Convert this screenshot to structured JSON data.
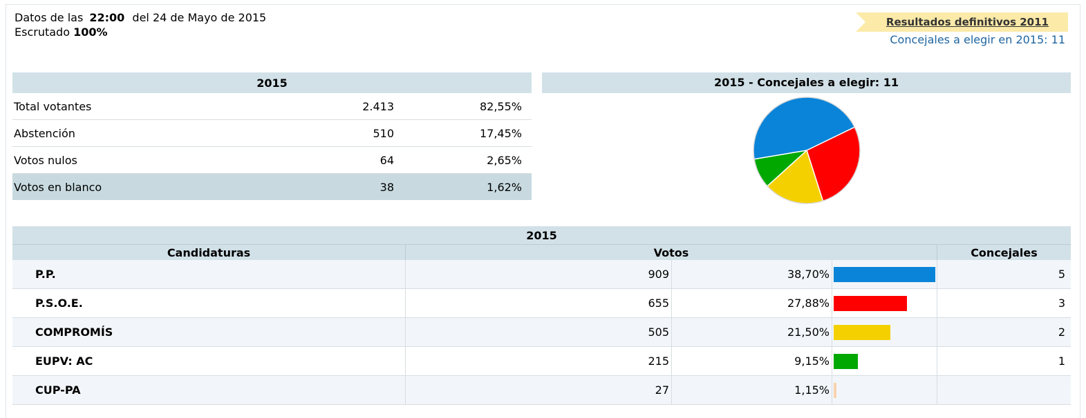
{
  "header": {
    "prefix": "Datos de las",
    "time": "22:00",
    "date": "del 24 de Mayo de 2015",
    "scrutiny_label": "Escrutado",
    "scrutiny_value": "100%",
    "link_2011": "Resultados definitivos 2011",
    "concejales_note": "Concejales a elegir en 2015: 11"
  },
  "summary": {
    "title": "2015",
    "rows": [
      {
        "label": "Total votantes",
        "value": "2.413",
        "pct": "82,55%"
      },
      {
        "label": "Abstención",
        "value": "510",
        "pct": "17,45%"
      },
      {
        "label": "Votos nulos",
        "value": "64",
        "pct": "2,65%"
      },
      {
        "label": "Votos en blanco",
        "value": "38",
        "pct": "1,62%"
      }
    ]
  },
  "chart_data": {
    "type": "pie",
    "title": "2015 - Concejales a elegir: 11",
    "categories": [
      "P.P.",
      "P.S.O.E.",
      "COMPROMÍS",
      "EUPV: AC"
    ],
    "values": [
      5,
      3,
      2,
      1
    ],
    "colors": [
      "#0a84d8",
      "#ff0000",
      "#f5d000",
      "#00a800"
    ]
  },
  "results": {
    "title": "2015",
    "headers": {
      "party": "Candidaturas",
      "votes": "Votos",
      "concejales": "Concejales"
    },
    "rows": [
      {
        "party": "P.P.",
        "votes": "909",
        "pct": "38,70%",
        "share": 38.7,
        "color": "#0a84d8",
        "concejales": "5"
      },
      {
        "party": "P.S.O.E.",
        "votes": "655",
        "pct": "27,88%",
        "share": 27.88,
        "color": "#ff0000",
        "concejales": "3"
      },
      {
        "party": "COMPROMÍS",
        "votes": "505",
        "pct": "21,50%",
        "share": 21.5,
        "color": "#f5d000",
        "concejales": "2"
      },
      {
        "party": "EUPV: AC",
        "votes": "215",
        "pct": "9,15%",
        "share": 9.15,
        "color": "#00a800",
        "concejales": "1"
      },
      {
        "party": "CUP-PA",
        "votes": "27",
        "pct": "1,15%",
        "share": 1.15,
        "color": "#f9d3b0",
        "concejales": ""
      }
    ]
  }
}
